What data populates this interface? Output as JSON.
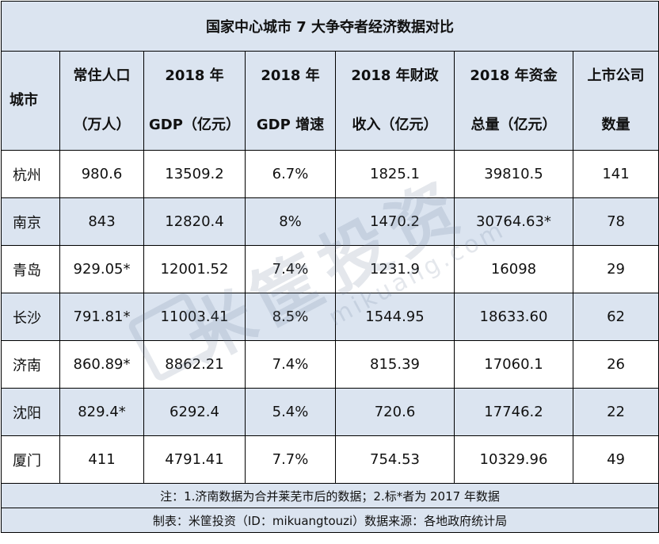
{
  "title": "国家中心城市 7 大争夺者经济数据对比",
  "headers": [
    {
      "line1": "城市",
      "line2": ""
    },
    {
      "line1": "常住人口",
      "line2": "（万人）"
    },
    {
      "line1": "2018 年",
      "line2": "GDP（亿元）"
    },
    {
      "line1": "2018 年",
      "line2": "GDP 增速"
    },
    {
      "line1": "2018 年财政",
      "line2": "收入（亿元）"
    },
    {
      "line1": "2018 年资金",
      "line2": "总量（亿元）"
    },
    {
      "line1": "上市公司",
      "line2": "数量"
    }
  ],
  "rows": [
    [
      "杭州",
      "980.6",
      "13509.2",
      "6.7%",
      "1825.1",
      "39810.5",
      "141"
    ],
    [
      "南京",
      "843",
      "12820.4",
      "8%",
      "1470.2",
      "30764.63*",
      "78"
    ],
    [
      "青岛",
      "929.05*",
      "12001.52",
      "7.4%",
      "1231.9",
      "16098",
      "29"
    ],
    [
      "长沙",
      "791.81*",
      "11003.41",
      "8.5%",
      "1544.95",
      "18633.60",
      "62"
    ],
    [
      "济南",
      "860.89*",
      "8862.21",
      "7.4%",
      "815.39",
      "17060.1",
      "26"
    ],
    [
      "沈阳",
      "829.4*",
      "6292.4",
      "5.4%",
      "720.6",
      "17746.2",
      "22"
    ],
    [
      "厦门",
      "411",
      "4791.41",
      "7.7%",
      "754.53",
      "10329.96",
      "49"
    ]
  ],
  "note": "注：1.济南数据为合并莱芜市后的数据；2.标*者为 2017 年数据",
  "credit": "制表：米筐投资（ID：mikuangtouzi）数据来源：各地政府统计局",
  "watermark": {
    "main": "米筐投资",
    "url": "mikuang.com"
  },
  "colors": {
    "header_bg": "#dbe4f0",
    "border": "#000000"
  }
}
